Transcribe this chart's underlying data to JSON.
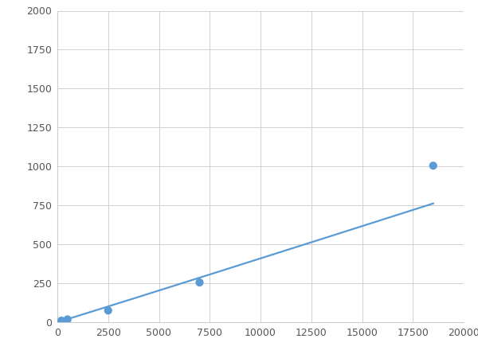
{
  "x": [
    200,
    500,
    2500,
    7000,
    18500
  ],
  "y": [
    10,
    18,
    75,
    255,
    1005
  ],
  "line_color": "#5b9bd5",
  "marker_color": "#5b9bd5",
  "marker_size": 6,
  "line_width": 1.6,
  "xlim": [
    0,
    20000
  ],
  "ylim": [
    0,
    2000
  ],
  "xticks": [
    0,
    2500,
    5000,
    7500,
    10000,
    12500,
    15000,
    17500,
    20000
  ],
  "yticks": [
    0,
    250,
    500,
    750,
    1000,
    1250,
    1500,
    1750,
    2000
  ],
  "grid_color": "#d0d0d0",
  "background_color": "#ffffff",
  "spine_color": "#cccccc",
  "tick_label_color": "#555555",
  "tick_label_size": 9
}
